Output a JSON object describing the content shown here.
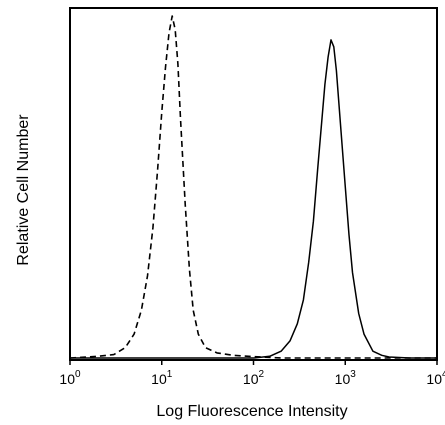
{
  "chart_data": {
    "type": "line",
    "title": "",
    "xlabel": "Log Fluorescence Intensity",
    "ylabel": "Relative Cell Number",
    "xscale": "log",
    "xlim": [
      1,
      10000
    ],
    "ylim": [
      0,
      100
    ],
    "x_ticks": [
      {
        "base": "10",
        "exp": "0"
      },
      {
        "base": "10",
        "exp": "1"
      },
      {
        "base": "10",
        "exp": "2"
      },
      {
        "base": "10",
        "exp": "3"
      },
      {
        "base": "10",
        "exp": "4"
      }
    ],
    "legend": "none",
    "grid": false,
    "series": [
      {
        "style": "dashed",
        "color": "#000000",
        "x": [
          1,
          2,
          3,
          4,
          5,
          6,
          7,
          8,
          9,
          10,
          11,
          12,
          13,
          14,
          15,
          16,
          18,
          20,
          22,
          25,
          30,
          40,
          60,
          100,
          200,
          1000,
          10000
        ],
        "y": [
          0,
          0.5,
          1,
          3,
          7,
          14,
          24,
          38,
          55,
          72,
          85,
          95,
          100,
          96,
          86,
          70,
          45,
          26,
          14,
          7,
          3,
          1.5,
          0.8,
          0.4,
          0,
          0,
          0
        ]
      },
      {
        "style": "solid",
        "color": "#000000",
        "x": [
          1,
          10,
          100,
          150,
          200,
          250,
          300,
          350,
          400,
          450,
          500,
          550,
          600,
          650,
          700,
          750,
          800,
          900,
          1000,
          1100,
          1200,
          1400,
          1600,
          2000,
          2500,
          3000,
          5000,
          10000
        ],
        "y": [
          0,
          0,
          0,
          0.5,
          2,
          5,
          10,
          17,
          28,
          40,
          55,
          68,
          80,
          88,
          93,
          91,
          84,
          66,
          50,
          36,
          25,
          13,
          7,
          2,
          0.8,
          0.3,
          0,
          0
        ]
      }
    ]
  }
}
